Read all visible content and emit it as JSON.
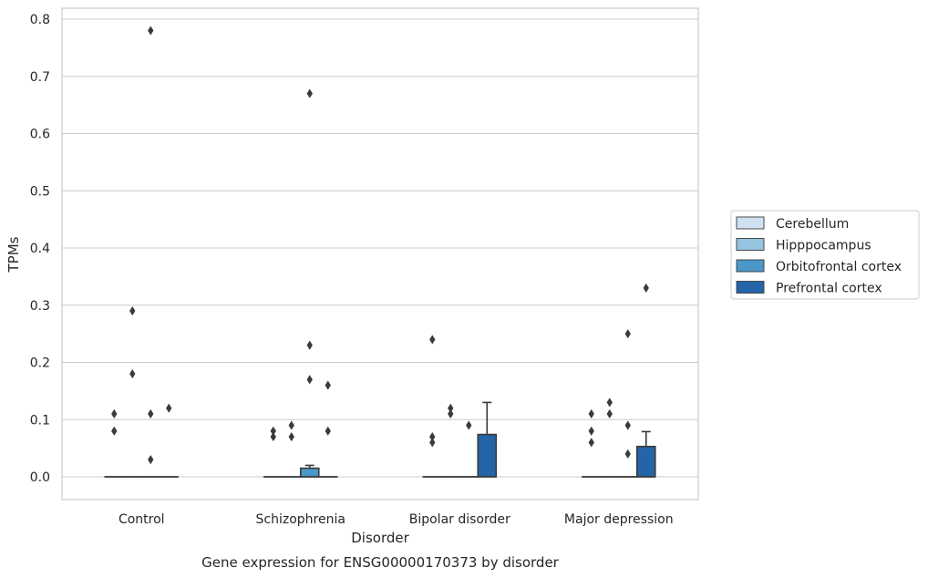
{
  "chart_data": {
    "type": "box",
    "caption": "Gene expression for ENSG00000170373 by disorder",
    "xlabel": "Disorder",
    "ylabel": "TPMs",
    "ylim": [
      -0.04,
      0.82
    ],
    "yticks": [
      0.0,
      0.1,
      0.2,
      0.3,
      0.4,
      0.5,
      0.6,
      0.7,
      0.8
    ],
    "ytick_labels": [
      "0.0",
      "0.1",
      "0.2",
      "0.3",
      "0.4",
      "0.5",
      "0.6",
      "0.7",
      "0.8"
    ],
    "grid": true,
    "legend_position": "right",
    "categories": [
      "Control",
      "Schizophrenia",
      "Bipolar disorder",
      "Major depression"
    ],
    "series": [
      {
        "name": "Cerebellum",
        "color": "#d0e1f2",
        "boxes": [
          {
            "q1": 0,
            "median": 0,
            "q3": 0,
            "whisker_low": 0,
            "whisker_high": 0,
            "outliers": [
              0.11,
              0.08
            ]
          },
          {
            "q1": 0,
            "median": 0,
            "q3": 0,
            "whisker_low": 0,
            "whisker_high": 0,
            "outliers": [
              0.08,
              0.07
            ]
          },
          {
            "q1": 0,
            "median": 0,
            "q3": 0,
            "whisker_low": 0,
            "whisker_high": 0,
            "outliers": [
              0.24,
              0.07,
              0.06
            ]
          },
          {
            "q1": 0,
            "median": 0,
            "q3": 0,
            "whisker_low": 0,
            "whisker_high": 0,
            "outliers": [
              0.11,
              0.08,
              0.06
            ]
          }
        ]
      },
      {
        "name": "Hipppocampus",
        "color": "#94c4df",
        "boxes": [
          {
            "q1": 0,
            "median": 0,
            "q3": 0,
            "whisker_low": 0,
            "whisker_high": 0,
            "outliers": [
              0.29,
              0.18
            ]
          },
          {
            "q1": 0,
            "median": 0,
            "q3": 0,
            "whisker_low": 0,
            "whisker_high": 0,
            "outliers": [
              0.09,
              0.07
            ]
          },
          {
            "q1": 0,
            "median": 0,
            "q3": 0,
            "whisker_low": 0,
            "whisker_high": 0,
            "outliers": [
              0.12,
              0.11
            ]
          },
          {
            "q1": 0,
            "median": 0,
            "q3": 0,
            "whisker_low": 0,
            "whisker_high": 0,
            "outliers": [
              0.13,
              0.11
            ]
          }
        ]
      },
      {
        "name": "Orbitofrontal cortex",
        "color": "#4a98c9",
        "boxes": [
          {
            "q1": 0,
            "median": 0,
            "q3": 0,
            "whisker_low": 0,
            "whisker_high": 0,
            "outliers": [
              0.78,
              0.11,
              0.03
            ]
          },
          {
            "q1": 0,
            "median": 0,
            "q3": 0.015,
            "whisker_low": 0,
            "whisker_high": 0.02,
            "outliers": [
              0.67,
              0.23,
              0.17
            ]
          },
          {
            "q1": 0,
            "median": 0,
            "q3": 0,
            "whisker_low": 0,
            "whisker_high": 0,
            "outliers": [
              0.09
            ]
          },
          {
            "q1": 0,
            "median": 0,
            "q3": 0,
            "whisker_low": 0,
            "whisker_high": 0,
            "outliers": [
              0.25,
              0.09,
              0.04
            ]
          }
        ]
      },
      {
        "name": "Prefrontal cortex",
        "color": "#2464a8",
        "boxes": [
          {
            "q1": 0,
            "median": 0,
            "q3": 0,
            "whisker_low": 0,
            "whisker_high": 0,
            "outliers": [
              0.12
            ]
          },
          {
            "q1": 0,
            "median": 0,
            "q3": 0,
            "whisker_low": 0,
            "whisker_high": 0,
            "outliers": [
              0.16,
              0.08
            ]
          },
          {
            "q1": 0,
            "median": 0,
            "q3": 0.074,
            "whisker_low": 0,
            "whisker_high": 0.13,
            "outliers": []
          },
          {
            "q1": 0,
            "median": 0,
            "q3": 0.053,
            "whisker_low": 0,
            "whisker_high": 0.079,
            "outliers": [
              0.33
            ]
          }
        ]
      }
    ]
  }
}
